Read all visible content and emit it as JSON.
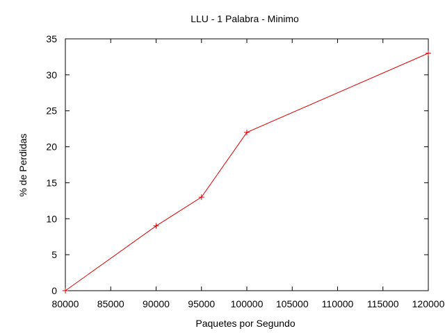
{
  "chart_data": {
    "type": "line",
    "title": "LLU - 1 Palabra - Minimo",
    "xlabel": "Paquetes por Segundo",
    "ylabel": "% de Perdidas",
    "xlim": [
      80000,
      120000
    ],
    "ylim": [
      0,
      35
    ],
    "x_ticks": [
      80000,
      85000,
      90000,
      95000,
      100000,
      105000,
      110000,
      115000,
      120000
    ],
    "y_ticks": [
      0,
      5,
      10,
      15,
      20,
      25,
      30,
      35
    ],
    "grid": false,
    "legend": "none",
    "series": [
      {
        "color": "#e00000",
        "marker": "plus",
        "x": [
          80000,
          90000,
          95000,
          100000,
          120000
        ],
        "y": [
          0,
          9,
          13,
          22,
          33
        ]
      }
    ]
  }
}
